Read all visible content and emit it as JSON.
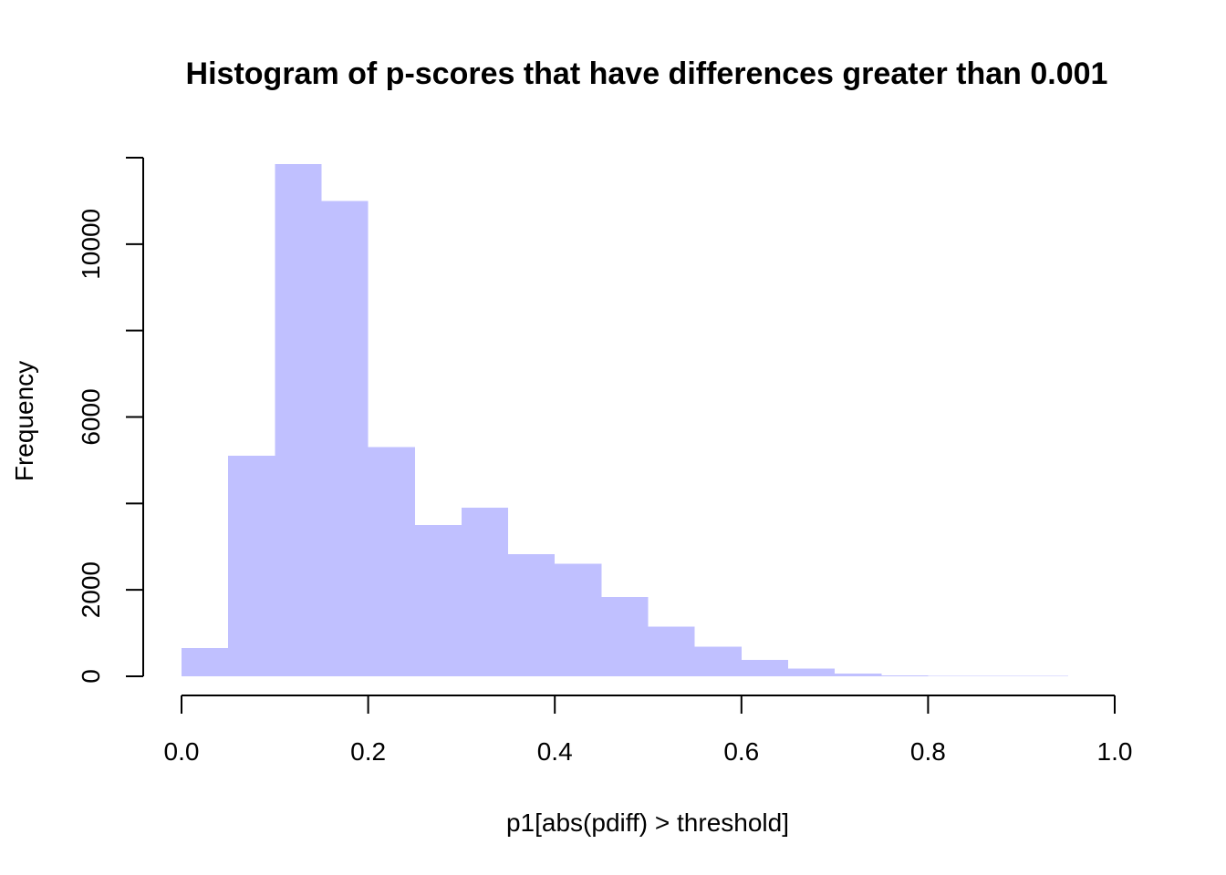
{
  "chart_data": {
    "type": "bar",
    "title": "Histogram of p-scores that have differences greater than 0.001",
    "xlabel": "p1[abs(pdiff) > threshold]",
    "ylabel": "Frequency",
    "bar_color": "#c0c0ff",
    "xlim": [
      0.0,
      1.0
    ],
    "ylim": [
      0,
      12000
    ],
    "x_ticks": [
      0.0,
      0.2,
      0.4,
      0.6,
      0.8,
      1.0
    ],
    "x_tick_labels": [
      "0.0",
      "0.2",
      "0.4",
      "0.6",
      "0.8",
      "1.0"
    ],
    "y_ticks": [
      0,
      2000,
      4000,
      6000,
      8000,
      10000,
      12000
    ],
    "y_tick_labels": [
      "0",
      "2000",
      "",
      "6000",
      "",
      "10000",
      ""
    ],
    "bin_edges": [
      0.0,
      0.05,
      0.1,
      0.15,
      0.2,
      0.25,
      0.3,
      0.35,
      0.4,
      0.45,
      0.5,
      0.55,
      0.6,
      0.65,
      0.7,
      0.75,
      0.8,
      0.85,
      0.9,
      0.95,
      1.0
    ],
    "values": [
      650,
      5100,
      11850,
      11000,
      5300,
      3500,
      3900,
      2830,
      2600,
      1830,
      1150,
      690,
      380,
      180,
      60,
      25,
      15,
      10,
      8,
      5
    ],
    "grid": false,
    "legend": "none"
  }
}
